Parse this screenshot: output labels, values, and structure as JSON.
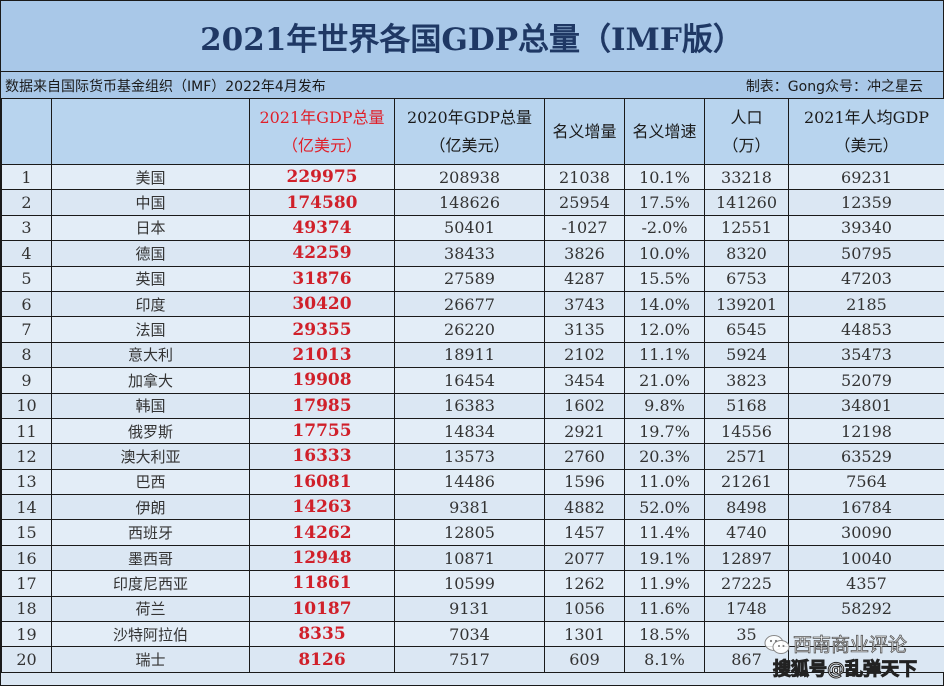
{
  "header": {
    "title": "2021年世界各国GDP总量（IMF版）",
    "source": "数据来自国际货币基金组织（IMF）2022年4月发布",
    "credit": "制表：Gong众号：冲之星云"
  },
  "table": {
    "columns": [
      {
        "line1": "",
        "line2": ""
      },
      {
        "line1": "",
        "line2": ""
      },
      {
        "line1": "2021年GDP总量",
        "line2": "（亿美元）"
      },
      {
        "line1": "2020年GDP总量",
        "line2": "（亿美元）"
      },
      {
        "line1": "名义增量",
        "line2": ""
      },
      {
        "line1": "名义增速",
        "line2": ""
      },
      {
        "line1": "人口",
        "line2": "（万）"
      },
      {
        "line1": "2021年人均GDP",
        "line2": "（美元）"
      }
    ],
    "rows": [
      {
        "rank": "1",
        "country": "美国",
        "gdp2021": "229975",
        "gdp2020": "208938",
        "increase": "21038",
        "growth": "10.1%",
        "population": "33218",
        "per_capita": "69231"
      },
      {
        "rank": "2",
        "country": "中国",
        "gdp2021": "174580",
        "gdp2020": "148626",
        "increase": "25954",
        "growth": "17.5%",
        "population": "141260",
        "per_capita": "12359"
      },
      {
        "rank": "3",
        "country": "日本",
        "gdp2021": "49374",
        "gdp2020": "50401",
        "increase": "-1027",
        "growth": "-2.0%",
        "population": "12551",
        "per_capita": "39340"
      },
      {
        "rank": "4",
        "country": "德国",
        "gdp2021": "42259",
        "gdp2020": "38433",
        "increase": "3826",
        "growth": "10.0%",
        "population": "8320",
        "per_capita": "50795"
      },
      {
        "rank": "5",
        "country": "英国",
        "gdp2021": "31876",
        "gdp2020": "27589",
        "increase": "4287",
        "growth": "15.5%",
        "population": "6753",
        "per_capita": "47203"
      },
      {
        "rank": "6",
        "country": "印度",
        "gdp2021": "30420",
        "gdp2020": "26677",
        "increase": "3743",
        "growth": "14.0%",
        "population": "139201",
        "per_capita": "2185"
      },
      {
        "rank": "7",
        "country": "法国",
        "gdp2021": "29355",
        "gdp2020": "26220",
        "increase": "3135",
        "growth": "12.0%",
        "population": "6545",
        "per_capita": "44853"
      },
      {
        "rank": "8",
        "country": "意大利",
        "gdp2021": "21013",
        "gdp2020": "18911",
        "increase": "2102",
        "growth": "11.1%",
        "population": "5924",
        "per_capita": "35473"
      },
      {
        "rank": "9",
        "country": "加拿大",
        "gdp2021": "19908",
        "gdp2020": "16454",
        "increase": "3454",
        "growth": "21.0%",
        "population": "3823",
        "per_capita": "52079"
      },
      {
        "rank": "10",
        "country": "韩国",
        "gdp2021": "17985",
        "gdp2020": "16383",
        "increase": "1602",
        "growth": "9.8%",
        "population": "5168",
        "per_capita": "34801"
      },
      {
        "rank": "11",
        "country": "俄罗斯",
        "gdp2021": "17755",
        "gdp2020": "14834",
        "increase": "2921",
        "growth": "19.7%",
        "population": "14556",
        "per_capita": "12198"
      },
      {
        "rank": "12",
        "country": "澳大利亚",
        "gdp2021": "16333",
        "gdp2020": "13573",
        "increase": "2760",
        "growth": "20.3%",
        "population": "2571",
        "per_capita": "63529"
      },
      {
        "rank": "13",
        "country": "巴西",
        "gdp2021": "16081",
        "gdp2020": "14486",
        "increase": "1596",
        "growth": "11.0%",
        "population": "21261",
        "per_capita": "7564"
      },
      {
        "rank": "14",
        "country": "伊朗",
        "gdp2021": "14263",
        "gdp2020": "9381",
        "increase": "4882",
        "growth": "52.0%",
        "population": "8498",
        "per_capita": "16784"
      },
      {
        "rank": "15",
        "country": "西班牙",
        "gdp2021": "14262",
        "gdp2020": "12805",
        "increase": "1457",
        "growth": "11.4%",
        "population": "4740",
        "per_capita": "30090"
      },
      {
        "rank": "16",
        "country": "墨西哥",
        "gdp2021": "12948",
        "gdp2020": "10871",
        "increase": "2077",
        "growth": "19.1%",
        "population": "12897",
        "per_capita": "10040"
      },
      {
        "rank": "17",
        "country": "印度尼西亚",
        "gdp2021": "11861",
        "gdp2020": "10599",
        "increase": "1262",
        "growth": "11.9%",
        "population": "27225",
        "per_capita": "4357"
      },
      {
        "rank": "18",
        "country": "荷兰",
        "gdp2021": "10187",
        "gdp2020": "9131",
        "increase": "1056",
        "growth": "11.6%",
        "population": "1748",
        "per_capita": "58292"
      },
      {
        "rank": "19",
        "country": "沙特阿拉伯",
        "gdp2021": "8335",
        "gdp2020": "7034",
        "increase": "1301",
        "growth": "18.5%",
        "population": "35",
        "per_capita": ""
      },
      {
        "rank": "20",
        "country": "瑞士",
        "gdp2021": "8126",
        "gdp2020": "7517",
        "increase": "609",
        "growth": "8.1%",
        "population": "867",
        "per_capita": ""
      }
    ]
  },
  "watermark": {
    "icon": "wechat-icon",
    "line1": "西南商业评论",
    "line2": "搜狐号@乱弹天下"
  },
  "colors": {
    "title_bg": "#a9c8e8",
    "title_text": "#1f3864",
    "header_bg": "#b8d4ee",
    "row_bg": "#e3edf7",
    "highlight_red": "#d0202a",
    "border": "#1a1a1a"
  }
}
